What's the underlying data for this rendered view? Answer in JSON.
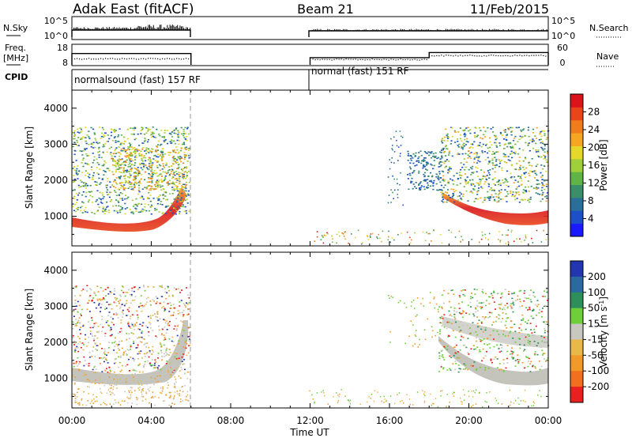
{
  "header": {
    "site": "Adak East (fitACF)",
    "beam": "Beam 21",
    "date": "11/Feb/2015"
  },
  "strip": {
    "nsky_label": "N.Sky",
    "nsky_ticks": [
      "10^5",
      "10^0"
    ],
    "nsearch_label": "N.Search",
    "nsearch_ticks": [
      "10^5",
      "10^0"
    ],
    "freq_label": "Freq.",
    "freq_unit": "[MHz]",
    "freq_ticks": [
      "18",
      "8"
    ],
    "nave_label": "Nave",
    "nave_ticks": [
      "60",
      "0"
    ],
    "cpid_label": "CPID",
    "cpid_modes": [
      {
        "name": "normalsound (fast) 157 RF",
        "start_h": 0,
        "end_h": 6
      },
      {
        "name": "normal (fast) 151 RF",
        "start_h": 12,
        "end_h": 24
      }
    ],
    "freq_steps": [
      {
        "start_h": 0,
        "end_h": 6,
        "level": 0.55
      },
      {
        "start_h": 12,
        "end_h": 18,
        "level": 0.35
      },
      {
        "start_h": 18,
        "end_h": 24,
        "level": 0.6
      }
    ]
  },
  "chart_data": [
    {
      "type": "heatmap",
      "name": "power",
      "ylabel": "Slant Range [km]",
      "xlabel": "Time UT",
      "yticks": [
        "1000",
        "2000",
        "3000",
        "4000"
      ],
      "ylim": [
        180,
        4500
      ],
      "xticks": [
        "00:00",
        "04:00",
        "08:00",
        "12:00",
        "16:00",
        "20:00",
        "00:00"
      ],
      "xlim": [
        0,
        24
      ],
      "data_gap_h": [
        6,
        12
      ],
      "colorbar": {
        "label": "Power [dB]",
        "ticks": [
          "4",
          "8",
          "12",
          "16",
          "20",
          "24",
          "28"
        ],
        "range": [
          0,
          30
        ],
        "colors": [
          "#1a1aff",
          "#1d4fc9",
          "#2a6f9a",
          "#3a8f6a",
          "#5fb347",
          "#9fcf3a",
          "#e6d82a",
          "#f5a623",
          "#f07d1c",
          "#e8461a",
          "#d9141a"
        ]
      }
    },
    {
      "type": "heatmap",
      "name": "velocity",
      "ylabel": "Slant Range [km]",
      "xlabel": "Time UT",
      "yticks": [
        "1000",
        "2000",
        "3000",
        "4000"
      ],
      "ylim": [
        180,
        4500
      ],
      "xticks": [
        "00:00",
        "04:00",
        "08:00",
        "12:00",
        "16:00",
        "20:00",
        "00:00"
      ],
      "xlim": [
        0,
        24
      ],
      "data_gap_h": [
        6,
        12
      ],
      "colorbar": {
        "label": "Velocity [m s",
        "label_sup": "-1",
        "label_end": "]",
        "ticks": [
          "200",
          "100",
          "50",
          "15",
          "-15",
          "-50",
          "-100",
          "-200"
        ],
        "colors": [
          "#2236b0",
          "#2a6aa0",
          "#2f8f5a",
          "#6fcf3a",
          "#c8c8c0",
          "#e8b84a",
          "#f09a2a",
          "#f07020",
          "#e82020"
        ]
      }
    }
  ]
}
